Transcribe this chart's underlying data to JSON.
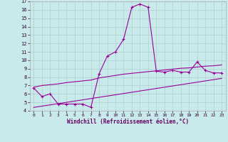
{
  "title": "",
  "xlabel": "Windchill (Refroidissement éolien,°C)",
  "ylabel": "",
  "bg_color": "#c8eaea",
  "line_color": "#990099",
  "xlim": [
    -0.5,
    23.5
  ],
  "ylim": [
    4,
    17
  ],
  "yticks": [
    4,
    5,
    6,
    7,
    8,
    9,
    10,
    11,
    12,
    13,
    14,
    15,
    16,
    17
  ],
  "xticks": [
    0,
    1,
    2,
    3,
    4,
    5,
    6,
    7,
    8,
    9,
    10,
    11,
    12,
    13,
    14,
    15,
    16,
    17,
    18,
    19,
    20,
    21,
    22,
    23
  ],
  "grid_color": "#b0d0d0",
  "hourly_temps": [
    6.7,
    5.7,
    6.0,
    4.8,
    4.8,
    4.8,
    4.8,
    4.4,
    8.4,
    10.5,
    11.0,
    12.5,
    16.3,
    16.7,
    16.3,
    8.7,
    8.6,
    8.8,
    8.6,
    8.6,
    9.8,
    8.8,
    8.5,
    8.5
  ],
  "diag_low": [
    4.4,
    4.55,
    4.7,
    4.85,
    5.0,
    5.15,
    5.3,
    5.45,
    5.6,
    5.75,
    5.9,
    6.05,
    6.2,
    6.35,
    6.5,
    6.65,
    6.8,
    6.95,
    7.1,
    7.25,
    7.4,
    7.55,
    7.7,
    7.85
  ],
  "diag_high": [
    6.8,
    7.0,
    7.1,
    7.2,
    7.35,
    7.45,
    7.55,
    7.65,
    7.9,
    8.05,
    8.2,
    8.35,
    8.45,
    8.55,
    8.65,
    8.75,
    8.85,
    8.95,
    9.05,
    9.1,
    9.2,
    9.3,
    9.35,
    9.45
  ]
}
